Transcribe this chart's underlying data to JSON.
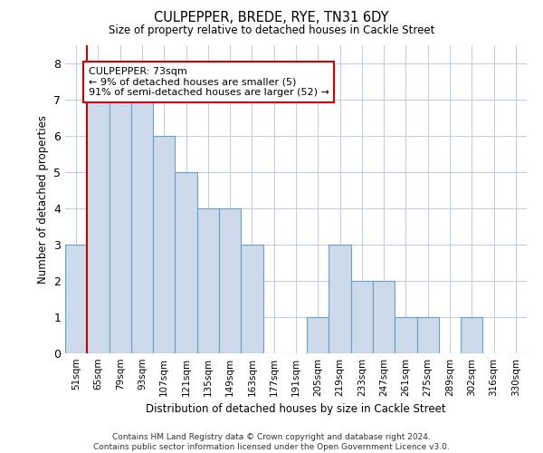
{
  "title": "CULPEPPER, BREDE, RYE, TN31 6DY",
  "subtitle": "Size of property relative to detached houses in Cackle Street",
  "xlabel": "Distribution of detached houses by size in Cackle Street",
  "ylabel": "Number of detached properties",
  "categories": [
    "51sqm",
    "65sqm",
    "79sqm",
    "93sqm",
    "107sqm",
    "121sqm",
    "135sqm",
    "149sqm",
    "163sqm",
    "177sqm",
    "191sqm",
    "205sqm",
    "219sqm",
    "233sqm",
    "247sqm",
    "261sqm",
    "275sqm",
    "289sqm",
    "302sqm",
    "316sqm",
    "330sqm"
  ],
  "values": [
    3,
    7,
    7,
    7,
    6,
    5,
    4,
    4,
    3,
    0,
    0,
    1,
    3,
    2,
    2,
    1,
    1,
    0,
    1,
    0,
    0
  ],
  "bar_color": "#ccdaeb",
  "bar_edge_color": "#6b9fc8",
  "bar_linewidth": 0.8,
  "vline_color": "#cc0000",
  "vline_pos": 0.5,
  "annotation_text": "CULPEPPER: 73sqm\n← 9% of detached houses are smaller (5)\n91% of semi-detached houses are larger (52) →",
  "ylim": [
    0,
    8.5
  ],
  "yticks": [
    0,
    1,
    2,
    3,
    4,
    5,
    6,
    7,
    8
  ],
  "background_color": "#ffffff",
  "grid_color": "#c0ccdc",
  "footer_line1": "Contains HM Land Registry data © Crown copyright and database right 2024.",
  "footer_line2": "Contains public sector information licensed under the Open Government Licence v3.0."
}
